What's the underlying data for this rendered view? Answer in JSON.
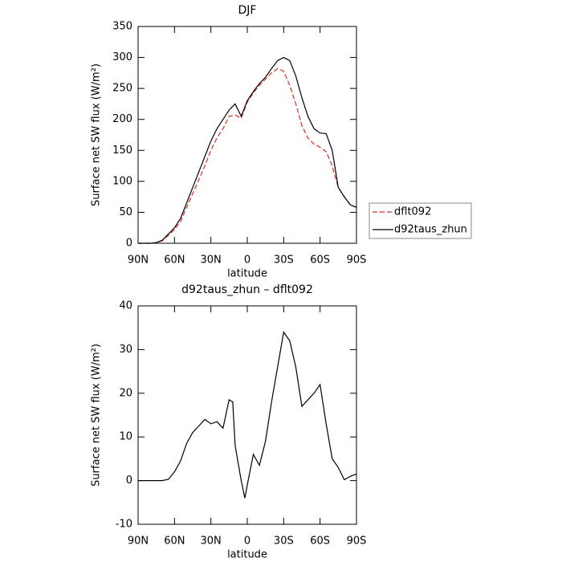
{
  "chart_data": [
    {
      "type": "line",
      "title": "DJF",
      "xlabel": "latitude",
      "ylabel": "Surface net SW flux (W/m²)",
      "x": [
        90,
        85,
        80,
        75,
        70,
        65,
        60,
        55,
        50,
        45,
        40,
        35,
        30,
        25,
        20,
        15,
        10,
        5,
        0,
        -5,
        -10,
        -15,
        -20,
        -25,
        -30,
        -35,
        -40,
        -45,
        -50,
        -55,
        -60,
        -65,
        -70,
        -75,
        -80,
        -85,
        -90
      ],
      "series": [
        {
          "name": "dflt092",
          "color": "#e8281e",
          "linestyle": "dashed",
          "values": [
            0,
            0,
            0,
            1,
            4,
            13,
            22,
            35,
            58,
            80,
            102,
            125,
            150,
            170,
            185,
            205,
            207,
            202,
            228,
            243,
            255,
            265,
            275,
            282,
            278,
            255,
            225,
            190,
            170,
            160,
            155,
            148,
            125,
            90,
            75,
            62,
            58
          ]
        },
        {
          "name": "d92taus_zhun",
          "color": "#000000",
          "linestyle": "solid",
          "values": [
            0,
            0,
            0,
            1,
            5,
            15,
            25,
            40,
            65,
            90,
            115,
            140,
            165,
            185,
            200,
            215,
            225,
            205,
            230,
            245,
            258,
            268,
            282,
            295,
            300,
            295,
            270,
            235,
            205,
            185,
            178,
            177,
            150,
            90,
            75,
            62,
            58
          ]
        }
      ],
      "xlim": [
        90,
        -90
      ],
      "xticks": [
        {
          "value": 90,
          "label": "90N"
        },
        {
          "value": 60,
          "label": "60N"
        },
        {
          "value": 30,
          "label": "30N"
        },
        0,
        {
          "value": -30,
          "label": "30S"
        },
        {
          "value": -60,
          "label": "60S"
        },
        {
          "value": -90,
          "label": "90S"
        }
      ],
      "ylim": [
        0,
        350
      ],
      "yticks": [
        0,
        50,
        100,
        150,
        200,
        250,
        300,
        350
      ],
      "legend": "right"
    },
    {
      "type": "line",
      "title": "d92taus_zhun – dflt092",
      "xlabel": "latitude",
      "ylabel": "Surface net SW flux (W/m²)",
      "x": [
        90,
        85,
        80,
        75,
        70,
        65,
        60,
        55,
        50,
        45,
        40,
        35,
        30,
        25,
        20,
        15,
        12,
        10,
        5,
        2,
        0,
        -5,
        -10,
        -15,
        -20,
        -25,
        -30,
        -35,
        -40,
        -45,
        -50,
        -55,
        -60,
        -65,
        -70,
        -75,
        -80,
        -85,
        -90
      ],
      "series": [
        {
          "name": "d92taus_zhun – dflt092",
          "color": "#000000",
          "linestyle": "solid",
          "values": [
            0,
            0,
            0,
            0,
            0,
            0.3,
            2,
            4.5,
            8.5,
            11,
            12.5,
            14,
            13,
            13.5,
            12,
            18.5,
            18,
            8,
            0,
            -4,
            -1,
            6,
            3.5,
            9,
            18,
            26,
            34,
            32,
            26,
            17,
            18.5,
            20,
            22,
            13,
            5,
            3,
            0.2,
            1,
            1.5
          ]
        }
      ],
      "xlim": [
        90,
        -90
      ],
      "xticks": [
        {
          "value": 90,
          "label": "90N"
        },
        {
          "value": 60,
          "label": "60N"
        },
        {
          "value": 30,
          "label": "30N"
        },
        0,
        {
          "value": -30,
          "label": "30S"
        },
        {
          "value": -60,
          "label": "60S"
        },
        {
          "value": -90,
          "label": "90S"
        }
      ],
      "ylim": [
        -10,
        40
      ],
      "yticks": [
        -10,
        0,
        10,
        20,
        30,
        40
      ]
    }
  ]
}
